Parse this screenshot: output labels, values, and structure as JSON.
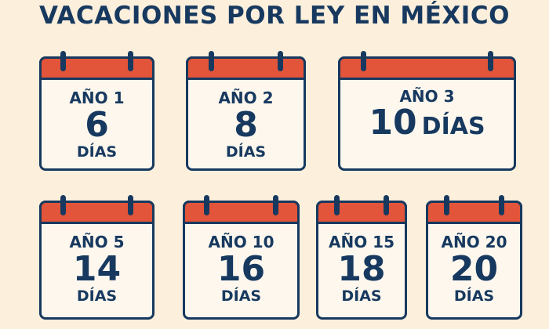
{
  "title": "VACACIONES POR LEY EN MÉXICO",
  "calendars": [
    {
      "year": "AÑO 1",
      "days": "6",
      "unit": "DÍAS"
    },
    {
      "year": "AÑO 2",
      "days": "8",
      "unit": "DÍAS"
    },
    {
      "year": "AÑO 3",
      "days": "10",
      "unit": "DÍAS"
    },
    {
      "year": "AÑO 5",
      "days": "14",
      "unit": "DÍAS"
    },
    {
      "year": "AÑO 10",
      "days": "16",
      "unit": "DÍAS"
    },
    {
      "year": "AÑO 15",
      "days": "18",
      "unit": "DÍAS"
    },
    {
      "year": "AÑO 20",
      "days": "20",
      "unit": "DÍAS"
    }
  ],
  "colors": {
    "background": "#fcefdc",
    "navy": "#17395f",
    "header_red": "#e2553a",
    "card": "#fdf7ee"
  },
  "icons": [
    "calendar-icon"
  ]
}
